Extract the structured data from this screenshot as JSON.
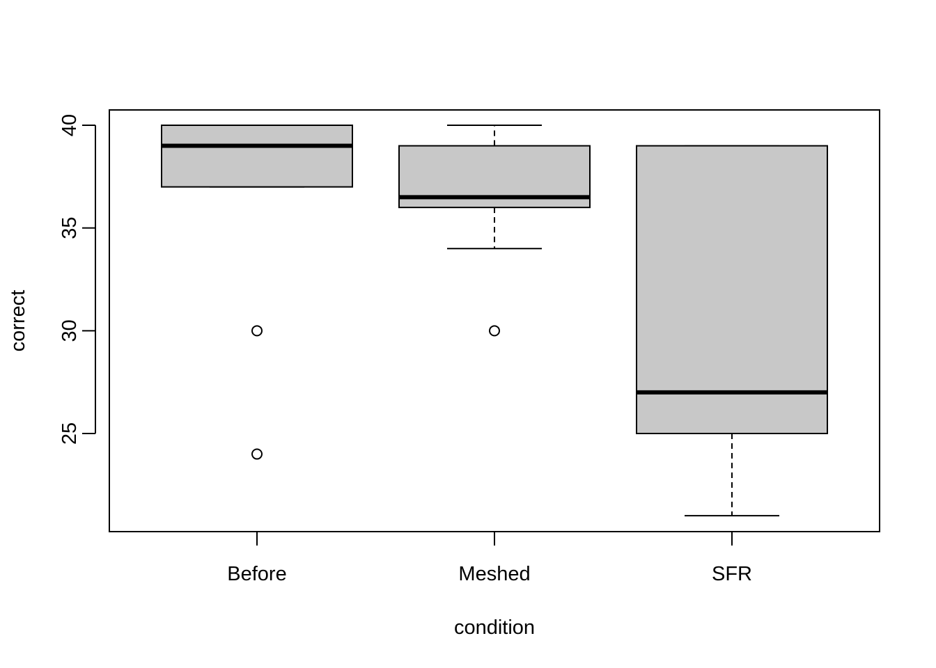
{
  "chart_data": {
    "type": "boxplot",
    "title": "",
    "xlabel": "condition",
    "ylabel": "correct",
    "ylim": [
      20.3,
      40.7
    ],
    "yticks": [
      25,
      30,
      35,
      40
    ],
    "grid": false,
    "categories": [
      "Before",
      "Meshed",
      "SFR"
    ],
    "boxes": [
      {
        "category": "Before",
        "whisker_low": 37,
        "q1": 37,
        "median": 39,
        "q3": 40,
        "whisker_high": 40,
        "outliers": [
          30,
          24
        ]
      },
      {
        "category": "Meshed",
        "whisker_low": 34,
        "q1": 36,
        "median": 36.5,
        "q3": 39,
        "whisker_high": 40,
        "outliers": [
          30
        ]
      },
      {
        "category": "SFR",
        "whisker_low": 21,
        "q1": 25,
        "median": 27,
        "q3": 39,
        "whisker_high": 39,
        "outliers": []
      }
    ],
    "box_color": "#c8c8c8"
  }
}
